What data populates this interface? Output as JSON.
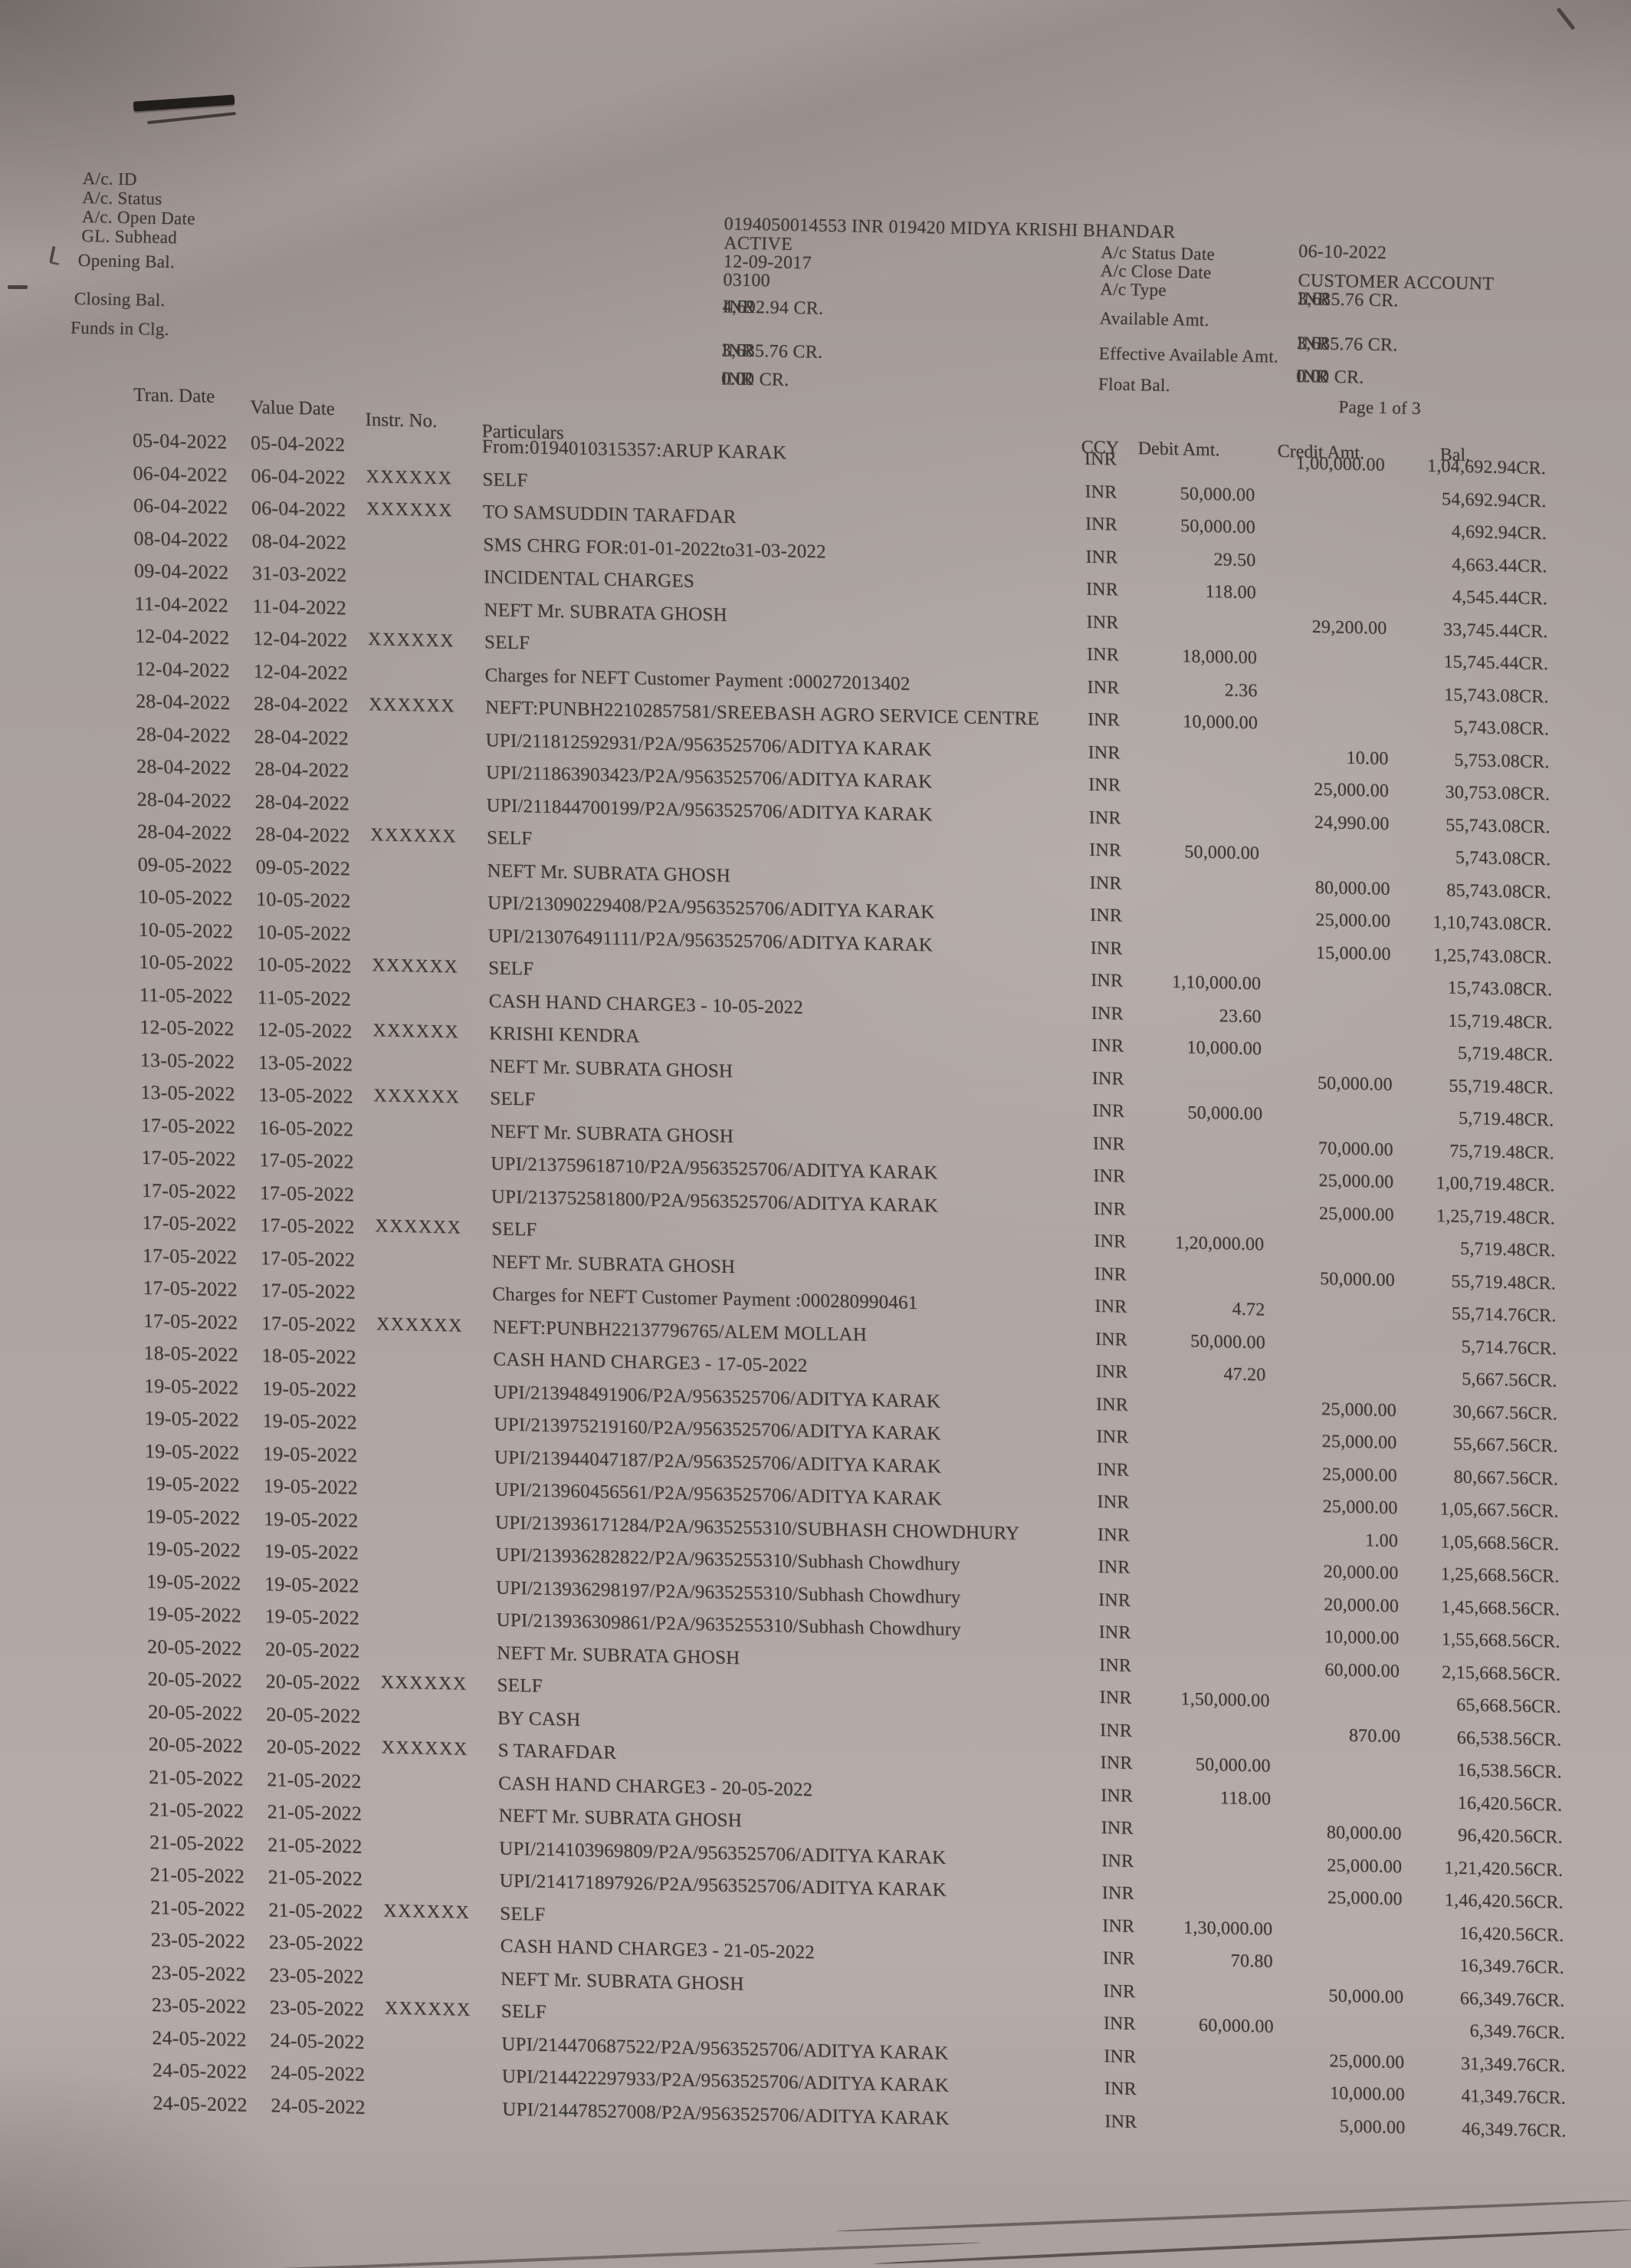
{
  "colors": {
    "paper": "#aea5a1",
    "ink": "#3b3734"
  },
  "header": {
    "left_labels": [
      "A/c. ID",
      "A/c. Status",
      "A/c. Open Date",
      "GL. Subhead",
      "Opening Bal.",
      "Closing Bal.",
      "Funds in Clg."
    ],
    "account_line": "0194050014553 INR 019420 MIDYA KRISHI BHANDAR",
    "account_status": "ACTIVE",
    "open_date": "12-09-2017",
    "gl_subhead": "03100",
    "opening_bal": {
      "ccy": "INR",
      "amount": "4,692.94  CR."
    },
    "closing_bal": {
      "ccy": "INR",
      "amount": "3,685.76  CR."
    },
    "funds_in_clg": {
      "ccy": "INR",
      "amount": "0.00  CR."
    },
    "right_labels": [
      "A/c  Status Date",
      "A/c  Close Date",
      "A/c  Type",
      "Available Amt.",
      "Effective Available Amt.",
      "Float Bal."
    ],
    "status_date": "06-10-2022",
    "close_date": "",
    "account_type": "CUSTOMER ACCOUNT",
    "type_bal": {
      "ccy": "INR",
      "amount": "3,685.76  CR."
    },
    "available_amt": {
      "ccy": "INR",
      "amount": "3,685.76  CR."
    },
    "float_bal": {
      "ccy": "INR",
      "amount": "0.00  CR."
    },
    "page_indicator": "Page  1  of  3"
  },
  "table": {
    "headers": {
      "tran": "Tran. Date",
      "value": "Value Date",
      "instr": "Instr. No.",
      "part": "Particulars",
      "ccy": "CCY",
      "debit": "Debit Amt.",
      "credit": "Credit Amt.",
      "bal": "Bal."
    },
    "rows": [
      {
        "tran": "05-04-2022",
        "value": "05-04-2022",
        "instr": "",
        "part": "From:0194010315357:ARUP KARAK",
        "ccy": "INR",
        "debit": "",
        "credit": "1,00,000.00",
        "bal": "1,04,692.94CR."
      },
      {
        "tran": "06-04-2022",
        "value": "06-04-2022",
        "instr": "XXXXXX",
        "part": "SELF",
        "ccy": "INR",
        "debit": "50,000.00",
        "credit": "",
        "bal": "54,692.94CR."
      },
      {
        "tran": "06-04-2022",
        "value": "06-04-2022",
        "instr": "XXXXXX",
        "part": "TO SAMSUDDIN TARAFDAR",
        "ccy": "INR",
        "debit": "50,000.00",
        "credit": "",
        "bal": "4,692.94CR."
      },
      {
        "tran": "08-04-2022",
        "value": "08-04-2022",
        "instr": "",
        "part": "SMS CHRG FOR:01-01-2022to31-03-2022",
        "ccy": "INR",
        "debit": "29.50",
        "credit": "",
        "bal": "4,663.44CR."
      },
      {
        "tran": "09-04-2022",
        "value": "31-03-2022",
        "instr": "",
        "part": "INCIDENTAL CHARGES",
        "ccy": "INR",
        "debit": "118.00",
        "credit": "",
        "bal": "4,545.44CR."
      },
      {
        "tran": "11-04-2022",
        "value": "11-04-2022",
        "instr": "",
        "part": "NEFT Mr. SUBRATA GHOSH",
        "ccy": "INR",
        "debit": "",
        "credit": "29,200.00",
        "bal": "33,745.44CR."
      },
      {
        "tran": "12-04-2022",
        "value": "12-04-2022",
        "instr": "XXXXXX",
        "part": "SELF",
        "ccy": "INR",
        "debit": "18,000.00",
        "credit": "",
        "bal": "15,745.44CR."
      },
      {
        "tran": "12-04-2022",
        "value": "12-04-2022",
        "instr": "",
        "part": "Charges for NEFT Customer Payment :000272013402",
        "ccy": "INR",
        "debit": "2.36",
        "credit": "",
        "bal": "15,743.08CR."
      },
      {
        "tran": "28-04-2022",
        "value": "28-04-2022",
        "instr": "XXXXXX",
        "part": "NEFT:PUNBH22102857581/SREEBASH AGRO SERVICE CENTRE",
        "ccy": "INR",
        "debit": "10,000.00",
        "credit": "",
        "bal": "5,743.08CR."
      },
      {
        "tran": "28-04-2022",
        "value": "28-04-2022",
        "instr": "",
        "part": "UPI/211812592931/P2A/9563525706/ADITYA KARAK",
        "ccy": "INR",
        "debit": "",
        "credit": "10.00",
        "bal": "5,753.08CR."
      },
      {
        "tran": "28-04-2022",
        "value": "28-04-2022",
        "instr": "",
        "part": "UPI/211863903423/P2A/9563525706/ADITYA KARAK",
        "ccy": "INR",
        "debit": "",
        "credit": "25,000.00",
        "bal": "30,753.08CR."
      },
      {
        "tran": "28-04-2022",
        "value": "28-04-2022",
        "instr": "",
        "part": "UPI/211844700199/P2A/9563525706/ADITYA KARAK",
        "ccy": "INR",
        "debit": "",
        "credit": "24,990.00",
        "bal": "55,743.08CR."
      },
      {
        "tran": "28-04-2022",
        "value": "28-04-2022",
        "instr": "XXXXXX",
        "part": "SELF",
        "ccy": "INR",
        "debit": "50,000.00",
        "credit": "",
        "bal": "5,743.08CR."
      },
      {
        "tran": "09-05-2022",
        "value": "09-05-2022",
        "instr": "",
        "part": "NEFT Mr. SUBRATA GHOSH",
        "ccy": "INR",
        "debit": "",
        "credit": "80,000.00",
        "bal": "85,743.08CR."
      },
      {
        "tran": "10-05-2022",
        "value": "10-05-2022",
        "instr": "",
        "part": "UPI/213090229408/P2A/9563525706/ADITYA KARAK",
        "ccy": "INR",
        "debit": "",
        "credit": "25,000.00",
        "bal": "1,10,743.08CR."
      },
      {
        "tran": "10-05-2022",
        "value": "10-05-2022",
        "instr": "",
        "part": "UPI/213076491111/P2A/9563525706/ADITYA KARAK",
        "ccy": "INR",
        "debit": "",
        "credit": "15,000.00",
        "bal": "1,25,743.08CR."
      },
      {
        "tran": "10-05-2022",
        "value": "10-05-2022",
        "instr": "XXXXXX",
        "part": "SELF",
        "ccy": "INR",
        "debit": "1,10,000.00",
        "credit": "",
        "bal": "15,743.08CR."
      },
      {
        "tran": "11-05-2022",
        "value": "11-05-2022",
        "instr": "",
        "part": "CASH HAND CHARGE3 - 10-05-2022",
        "ccy": "INR",
        "debit": "23.60",
        "credit": "",
        "bal": "15,719.48CR."
      },
      {
        "tran": "12-05-2022",
        "value": "12-05-2022",
        "instr": "XXXXXX",
        "part": "KRISHI KENDRA",
        "ccy": "INR",
        "debit": "10,000.00",
        "credit": "",
        "bal": "5,719.48CR."
      },
      {
        "tran": "13-05-2022",
        "value": "13-05-2022",
        "instr": "",
        "part": "NEFT Mr. SUBRATA GHOSH",
        "ccy": "INR",
        "debit": "",
        "credit": "50,000.00",
        "bal": "55,719.48CR."
      },
      {
        "tran": "13-05-2022",
        "value": "13-05-2022",
        "instr": "XXXXXX",
        "part": "SELF",
        "ccy": "INR",
        "debit": "50,000.00",
        "credit": "",
        "bal": "5,719.48CR."
      },
      {
        "tran": "17-05-2022",
        "value": "16-05-2022",
        "instr": "",
        "part": "NEFT Mr. SUBRATA GHOSH",
        "ccy": "INR",
        "debit": "",
        "credit": "70,000.00",
        "bal": "75,719.48CR."
      },
      {
        "tran": "17-05-2022",
        "value": "17-05-2022",
        "instr": "",
        "part": "UPI/213759618710/P2A/9563525706/ADITYA KARAK",
        "ccy": "INR",
        "debit": "",
        "credit": "25,000.00",
        "bal": "1,00,719.48CR."
      },
      {
        "tran": "17-05-2022",
        "value": "17-05-2022",
        "instr": "",
        "part": "UPI/213752581800/P2A/9563525706/ADITYA KARAK",
        "ccy": "INR",
        "debit": "",
        "credit": "25,000.00",
        "bal": "1,25,719.48CR."
      },
      {
        "tran": "17-05-2022",
        "value": "17-05-2022",
        "instr": "XXXXXX",
        "part": "SELF",
        "ccy": "INR",
        "debit": "1,20,000.00",
        "credit": "",
        "bal": "5,719.48CR."
      },
      {
        "tran": "17-05-2022",
        "value": "17-05-2022",
        "instr": "",
        "part": "NEFT Mr. SUBRATA GHOSH",
        "ccy": "INR",
        "debit": "",
        "credit": "50,000.00",
        "bal": "55,719.48CR."
      },
      {
        "tran": "17-05-2022",
        "value": "17-05-2022",
        "instr": "",
        "part": "Charges for NEFT Customer Payment :000280990461",
        "ccy": "INR",
        "debit": "4.72",
        "credit": "",
        "bal": "55,714.76CR."
      },
      {
        "tran": "17-05-2022",
        "value": "17-05-2022",
        "instr": "XXXXXX",
        "part": "NEFT:PUNBH22137796765/ALEM MOLLAH",
        "ccy": "INR",
        "debit": "50,000.00",
        "credit": "",
        "bal": "5,714.76CR."
      },
      {
        "tran": "18-05-2022",
        "value": "18-05-2022",
        "instr": "",
        "part": "CASH HAND CHARGE3 - 17-05-2022",
        "ccy": "INR",
        "debit": "47.20",
        "credit": "",
        "bal": "5,667.56CR."
      },
      {
        "tran": "19-05-2022",
        "value": "19-05-2022",
        "instr": "",
        "part": "UPI/213948491906/P2A/9563525706/ADITYA KARAK",
        "ccy": "INR",
        "debit": "",
        "credit": "25,000.00",
        "bal": "30,667.56CR."
      },
      {
        "tran": "19-05-2022",
        "value": "19-05-2022",
        "instr": "",
        "part": "UPI/213975219160/P2A/9563525706/ADITYA KARAK",
        "ccy": "INR",
        "debit": "",
        "credit": "25,000.00",
        "bal": "55,667.56CR."
      },
      {
        "tran": "19-05-2022",
        "value": "19-05-2022",
        "instr": "",
        "part": "UPI/213944047187/P2A/9563525706/ADITYA KARAK",
        "ccy": "INR",
        "debit": "",
        "credit": "25,000.00",
        "bal": "80,667.56CR."
      },
      {
        "tran": "19-05-2022",
        "value": "19-05-2022",
        "instr": "",
        "part": "UPI/213960456561/P2A/9563525706/ADITYA KARAK",
        "ccy": "INR",
        "debit": "",
        "credit": "25,000.00",
        "bal": "1,05,667.56CR."
      },
      {
        "tran": "19-05-2022",
        "value": "19-05-2022",
        "instr": "",
        "part": "UPI/213936171284/P2A/9635255310/SUBHASH CHOWDHURY",
        "ccy": "INR",
        "debit": "",
        "credit": "1.00",
        "bal": "1,05,668.56CR."
      },
      {
        "tran": "19-05-2022",
        "value": "19-05-2022",
        "instr": "",
        "part": "UPI/213936282822/P2A/9635255310/Subhash Chowdhury",
        "ccy": "INR",
        "debit": "",
        "credit": "20,000.00",
        "bal": "1,25,668.56CR."
      },
      {
        "tran": "19-05-2022",
        "value": "19-05-2022",
        "instr": "",
        "part": "UPI/213936298197/P2A/9635255310/Subhash Chowdhury",
        "ccy": "INR",
        "debit": "",
        "credit": "20,000.00",
        "bal": "1,45,668.56CR."
      },
      {
        "tran": "19-05-2022",
        "value": "19-05-2022",
        "instr": "",
        "part": "UPI/213936309861/P2A/9635255310/Subhash Chowdhury",
        "ccy": "INR",
        "debit": "",
        "credit": "10,000.00",
        "bal": "1,55,668.56CR."
      },
      {
        "tran": "20-05-2022",
        "value": "20-05-2022",
        "instr": "",
        "part": "NEFT Mr. SUBRATA GHOSH",
        "ccy": "INR",
        "debit": "",
        "credit": "60,000.00",
        "bal": "2,15,668.56CR."
      },
      {
        "tran": "20-05-2022",
        "value": "20-05-2022",
        "instr": "XXXXXX",
        "part": "SELF",
        "ccy": "INR",
        "debit": "1,50,000.00",
        "credit": "",
        "bal": "65,668.56CR."
      },
      {
        "tran": "20-05-2022",
        "value": "20-05-2022",
        "instr": "",
        "part": "BY CASH",
        "ccy": "INR",
        "debit": "",
        "credit": "870.00",
        "bal": "66,538.56CR."
      },
      {
        "tran": "20-05-2022",
        "value": "20-05-2022",
        "instr": "XXXXXX",
        "part": "S TARAFDAR",
        "ccy": "INR",
        "debit": "50,000.00",
        "credit": "",
        "bal": "16,538.56CR."
      },
      {
        "tran": "21-05-2022",
        "value": "21-05-2022",
        "instr": "",
        "part": "CASH HAND CHARGE3 - 20-05-2022",
        "ccy": "INR",
        "debit": "118.00",
        "credit": "",
        "bal": "16,420.56CR."
      },
      {
        "tran": "21-05-2022",
        "value": "21-05-2022",
        "instr": "",
        "part": "NEFT Mr. SUBRATA GHOSH",
        "ccy": "INR",
        "debit": "",
        "credit": "80,000.00",
        "bal": "96,420.56CR."
      },
      {
        "tran": "21-05-2022",
        "value": "21-05-2022",
        "instr": "",
        "part": "UPI/214103969809/P2A/9563525706/ADITYA KARAK",
        "ccy": "INR",
        "debit": "",
        "credit": "25,000.00",
        "bal": "1,21,420.56CR."
      },
      {
        "tran": "21-05-2022",
        "value": "21-05-2022",
        "instr": "",
        "part": "UPI/214171897926/P2A/9563525706/ADITYA KARAK",
        "ccy": "INR",
        "debit": "",
        "credit": "25,000.00",
        "bal": "1,46,420.56CR."
      },
      {
        "tran": "21-05-2022",
        "value": "21-05-2022",
        "instr": "XXXXXX",
        "part": "SELF",
        "ccy": "INR",
        "debit": "1,30,000.00",
        "credit": "",
        "bal": "16,420.56CR."
      },
      {
        "tran": "23-05-2022",
        "value": "23-05-2022",
        "instr": "",
        "part": "CASH HAND CHARGE3 - 21-05-2022",
        "ccy": "INR",
        "debit": "70.80",
        "credit": "",
        "bal": "16,349.76CR."
      },
      {
        "tran": "23-05-2022",
        "value": "23-05-2022",
        "instr": "",
        "part": "NEFT Mr. SUBRATA GHOSH",
        "ccy": "INR",
        "debit": "",
        "credit": "50,000.00",
        "bal": "66,349.76CR."
      },
      {
        "tran": "23-05-2022",
        "value": "23-05-2022",
        "instr": "XXXXXX",
        "part": "SELF",
        "ccy": "INR",
        "debit": "60,000.00",
        "credit": "",
        "bal": "6,349.76CR."
      },
      {
        "tran": "24-05-2022",
        "value": "24-05-2022",
        "instr": "",
        "part": "UPI/214470687522/P2A/9563525706/ADITYA KARAK",
        "ccy": "INR",
        "debit": "",
        "credit": "25,000.00",
        "bal": "31,349.76CR."
      },
      {
        "tran": "24-05-2022",
        "value": "24-05-2022",
        "instr": "",
        "part": "UPI/214422297933/P2A/9563525706/ADITYA KARAK",
        "ccy": "INR",
        "debit": "",
        "credit": "10,000.00",
        "bal": "41,349.76CR."
      },
      {
        "tran": "24-05-2022",
        "value": "24-05-2022",
        "instr": "",
        "part": "UPI/214478527008/P2A/9563525706/ADITYA KARAK",
        "ccy": "INR",
        "debit": "",
        "credit": "5,000.00",
        "bal": "46,349.76CR."
      }
    ]
  }
}
